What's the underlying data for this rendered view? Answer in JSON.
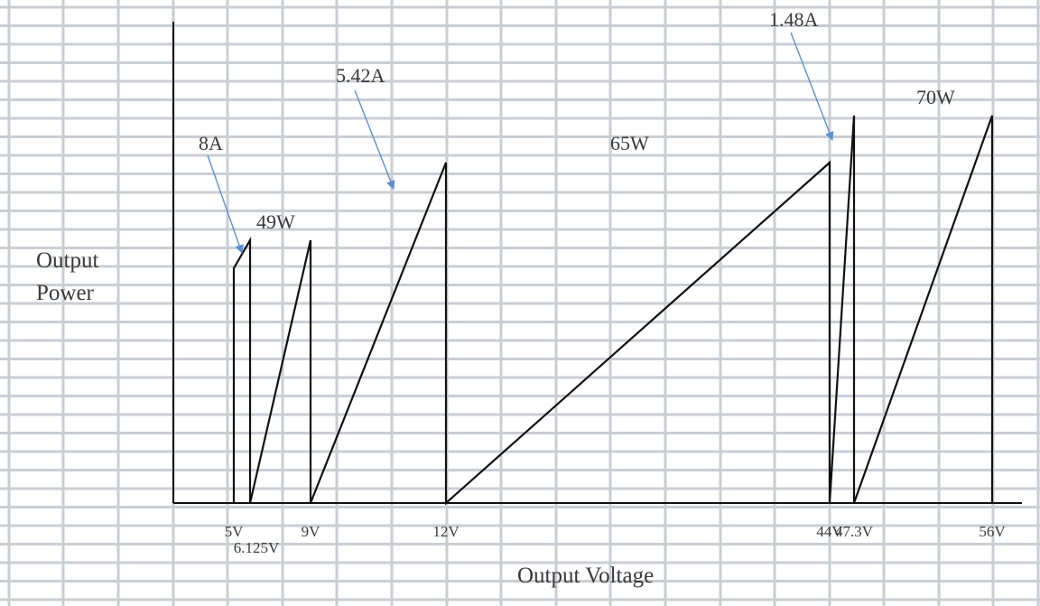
{
  "chart_data": {
    "type": "line",
    "xlabel": "Output Voltage",
    "ylabel": "Output Power",
    "grid": true,
    "colors": {
      "grid": "#c9ced3",
      "axis": "#111111",
      "curve": "#111111",
      "arrow": "#5b8fd1"
    },
    "xlim": [
      0,
      56
    ],
    "ylim": [
      0,
      80
    ],
    "x_ticks": [
      {
        "v": 5,
        "label": "5V",
        "row": 0
      },
      {
        "v": 6.125,
        "label": "6.125V",
        "row": 1
      },
      {
        "v": 9,
        "label": "9V",
        "row": 0
      },
      {
        "v": 12,
        "label": "12V",
        "row": 0
      },
      {
        "v": 44,
        "label": "44V",
        "row": 0
      },
      {
        "v": 47.3,
        "label": "47.3V",
        "row": 0
      },
      {
        "v": 56,
        "label": "56V",
        "row": 0
      }
    ],
    "series": [
      {
        "x": [
          5,
          5,
          6.125,
          6.125,
          9,
          9,
          12,
          12,
          44,
          44,
          47.3,
          47.3,
          56,
          56
        ],
        "y": [
          0,
          40,
          49,
          0,
          49,
          0,
          65,
          0,
          65,
          0,
          70,
          0,
          70,
          0
        ]
      }
    ],
    "annotations": [
      {
        "text": "8A",
        "x": 5.6,
        "y": 44
      },
      {
        "text": "49W",
        "x": 7.6,
        "y": 49
      },
      {
        "text": "5.42A",
        "x": 10.7,
        "y": 58
      },
      {
        "text": "65W",
        "x": 28.5,
        "y": 65
      },
      {
        "text": "1.48A",
        "x": 44.05,
        "y": 67.5
      },
      {
        "text": "70W",
        "x": 52,
        "y": 70
      }
    ],
    "annotation_labels": {
      "8A": "8A",
      "49W": "49W",
      "5.42A": "5.42A",
      "65W": "65W",
      "1.48A": "1.48A",
      "70W": "70W"
    }
  }
}
